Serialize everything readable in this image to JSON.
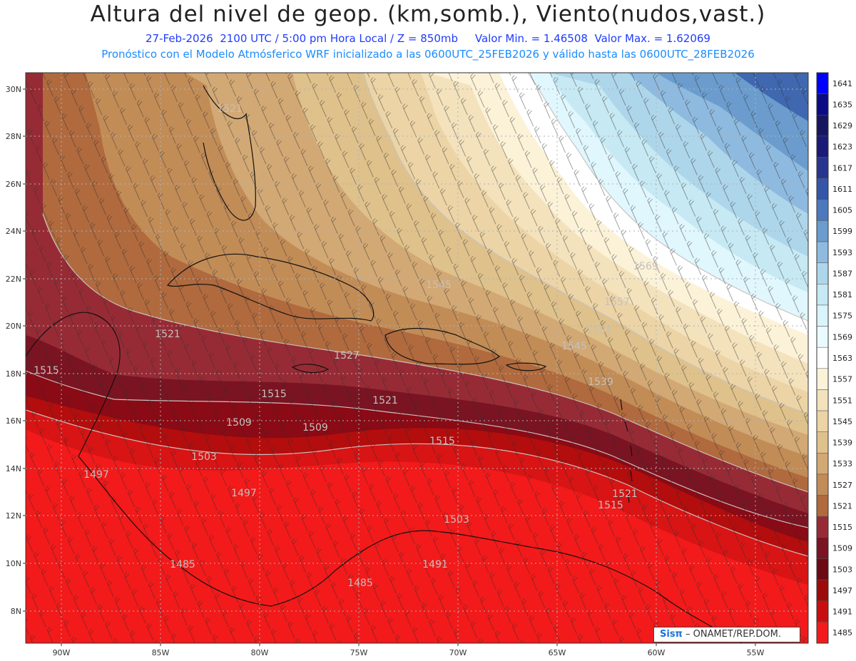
{
  "header": {
    "title": "Altura del nivel de geop. (km,somb.), Viento(nudos,vast.)",
    "subtitle": "27-Feb-2026  2100 UTC / 5:00 pm Hora Local / Z = 850mb     Valor Min. = 1.46508  Valor Max. = 1.62069",
    "model_info": "Pronóstico con el Modelo Atmósferico WRF inicializado a las 0600UTC_25FEB2026 y válido hasta las  0600UTC_28FEB2026"
  },
  "axes": {
    "lat_labels": [
      "30N",
      "28N",
      "26N",
      "24N",
      "22N",
      "20N",
      "18N",
      "16N",
      "14N",
      "12N",
      "10N",
      "8N"
    ],
    "lon_labels": [
      "90W",
      "85W",
      "80W",
      "75W",
      "70W",
      "65W",
      "60W",
      "55W"
    ]
  },
  "colorbar": {
    "levels": [
      "1641",
      "1635",
      "1629",
      "1623",
      "1617",
      "1611",
      "1605",
      "1599",
      "1593",
      "1587",
      "1581",
      "1575",
      "1569",
      "1563",
      "1557",
      "1551",
      "1545",
      "1539",
      "1533",
      "1527",
      "1521",
      "1515",
      "1509",
      "1503",
      "1497",
      "1491",
      "1485"
    ],
    "colors": [
      "#0000ff",
      "#0b0b86",
      "#161660",
      "#1a1a78",
      "#27358f",
      "#3555a8",
      "#4c79bd",
      "#6b9ccd",
      "#8fbadf",
      "#aed6ea",
      "#c6e9f3",
      "#d9f4fb",
      "#e9fbfe",
      "#ffffff",
      "#fbf2d8",
      "#f3e2bc",
      "#ecd4a6",
      "#dfc18b",
      "#d2a874",
      "#c28c57",
      "#b06a3e",
      "#972b35",
      "#7a1422",
      "#6c0a16",
      "#9c0b0b",
      "#c80f0f",
      "#f21a1a"
    ]
  },
  "contour_labels": [
    {
      "text": "1521"
    },
    {
      "text": "1569"
    },
    {
      "text": "1545"
    },
    {
      "text": "1557"
    },
    {
      "text": "1551"
    },
    {
      "text": "1545"
    },
    {
      "text": "1539"
    },
    {
      "text": "1521"
    },
    {
      "text": "1515"
    },
    {
      "text": "1527"
    },
    {
      "text": "1515"
    },
    {
      "text": "1509"
    },
    {
      "text": "1509"
    },
    {
      "text": "1521"
    },
    {
      "text": "1515"
    },
    {
      "text": "1503"
    },
    {
      "text": "1497"
    },
    {
      "text": "1497"
    },
    {
      "text": "1503"
    },
    {
      "text": "1521"
    },
    {
      "text": "1515"
    },
    {
      "text": "1485"
    },
    {
      "text": "1491"
    },
    {
      "text": "1485"
    }
  ],
  "credit": {
    "brand": "Sisπ",
    "text": " – ONAMET/REP.DOM."
  }
}
